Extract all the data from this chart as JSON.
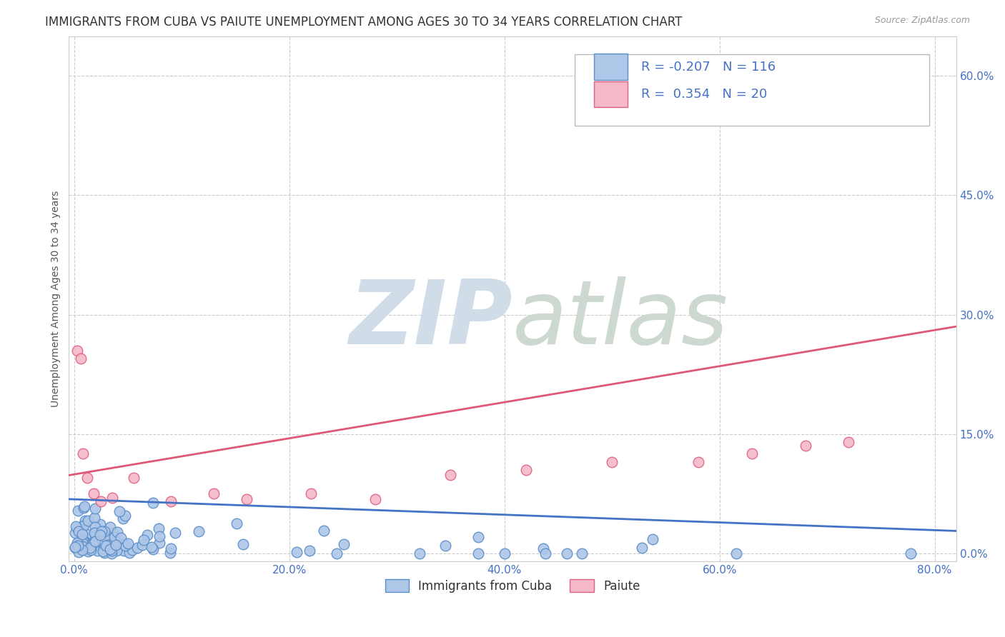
{
  "title": "IMMIGRANTS FROM CUBA VS PAIUTE UNEMPLOYMENT AMONG AGES 30 TO 34 YEARS CORRELATION CHART",
  "source": "Source: ZipAtlas.com",
  "ylabel": "Unemployment Among Ages 30 to 34 years",
  "xlim": [
    -0.005,
    0.82
  ],
  "ylim": [
    -0.01,
    0.65
  ],
  "xticks": [
    0.0,
    0.2,
    0.4,
    0.6,
    0.8
  ],
  "xticklabels": [
    "0.0%",
    "20.0%",
    "40.0%",
    "60.0%",
    "80.0%"
  ],
  "ytick_positions": [
    0.0,
    0.15,
    0.3,
    0.45,
    0.6
  ],
  "ytick_labels": [
    "0.0%",
    "15.0%",
    "30.0%",
    "45.0%",
    "60.0%"
  ],
  "cuba_R": -0.207,
  "cuba_N": 116,
  "paiute_R": 0.354,
  "paiute_N": 20,
  "cuba_color": "#aec6e8",
  "cuba_edge_color": "#5b8fc9",
  "cuba_line_color": "#4472c4",
  "paiute_color": "#f4b8c8",
  "paiute_edge_color": "#e06080",
  "paiute_line_color": "#e05878",
  "background_color": "#ffffff",
  "grid_color": "#cccccc",
  "title_fontsize": 12,
  "axis_label_fontsize": 10,
  "tick_fontsize": 11,
  "tick_color": "#4472c4",
  "legend_text_color": "#4472c4",
  "cuba_trend_start_y": 0.068,
  "cuba_trend_end_y": 0.028,
  "paiute_trend_start_y": 0.098,
  "paiute_trend_end_y": 0.285
}
